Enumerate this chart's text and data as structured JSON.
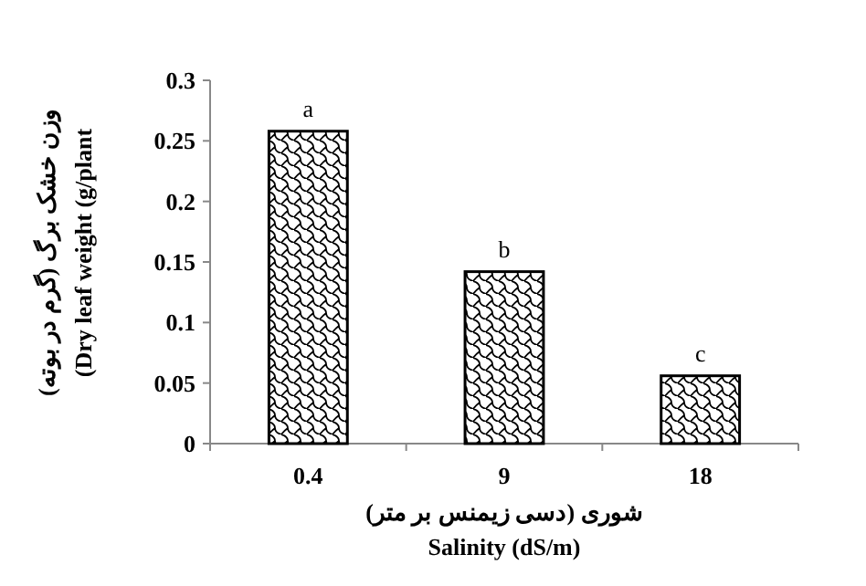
{
  "chart_data": {
    "type": "bar",
    "categories": [
      "0.4",
      "9",
      "18"
    ],
    "values": [
      0.258,
      0.142,
      0.056
    ],
    "value_labels": [
      "a",
      "b",
      "c"
    ],
    "color": "#ffffff",
    "ylim": [
      0,
      0.3
    ],
    "yticks": [
      0,
      0.05,
      0.1,
      0.15,
      0.2,
      0.25,
      0.3
    ],
    "xlabel": "شوری (دسی زیمنس بر متر)\nSalinity (dS/m)",
    "ylabel": "وزن خشک برگ (گرم در بوته)\n(Dry leaf weight (g/plant",
    "grid": false
  }
}
